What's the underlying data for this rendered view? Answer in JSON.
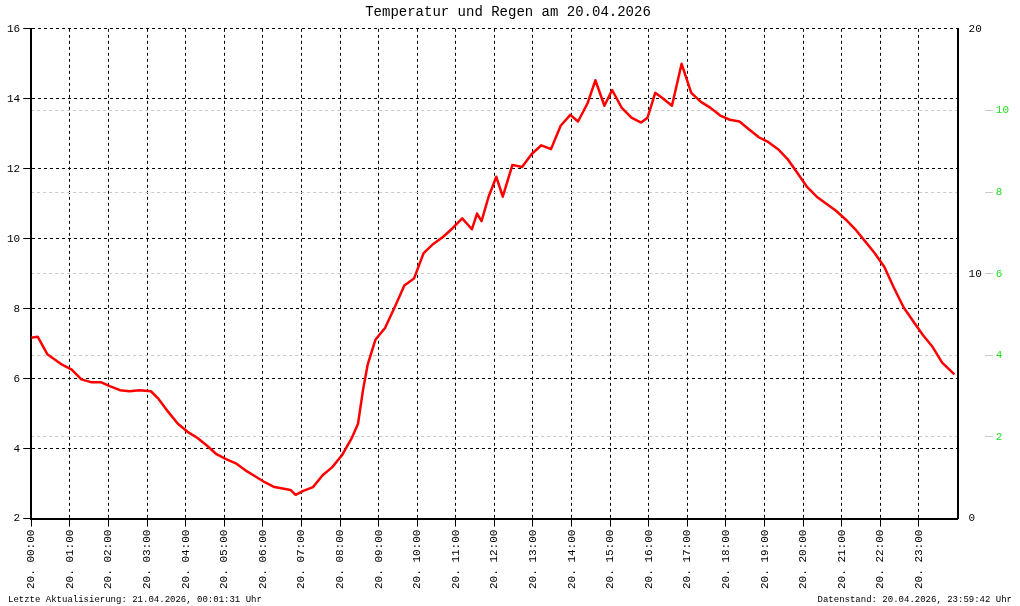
{
  "chart_data": {
    "type": "line",
    "title": "Temperatur und Regen am 20.04.2026",
    "x": [
      "2026-04-20T00:00",
      "2026-04-20T00:10",
      "2026-04-20T00:25",
      "2026-04-20T00:48",
      "2026-04-20T01:03",
      "2026-04-20T01:18",
      "2026-04-20T01:33",
      "2026-04-20T01:48",
      "2026-04-20T02:03",
      "2026-04-20T02:18",
      "2026-04-20T02:33",
      "2026-04-20T02:48",
      "2026-04-20T03:06",
      "2026-04-20T03:18",
      "2026-04-20T03:33",
      "2026-04-20T03:48",
      "2026-04-20T04:03",
      "2026-04-20T04:18",
      "2026-04-20T04:33",
      "2026-04-20T04:48",
      "2026-04-20T05:03",
      "2026-04-20T05:18",
      "2026-04-20T05:33",
      "2026-04-20T05:48",
      "2026-04-20T06:03",
      "2026-04-20T06:18",
      "2026-04-20T06:33",
      "2026-04-20T06:43",
      "2026-04-20T06:51",
      "2026-04-20T07:03",
      "2026-04-20T07:18",
      "2026-04-20T07:33",
      "2026-04-20T07:48",
      "2026-04-20T08:03",
      "2026-04-20T08:18",
      "2026-04-20T08:28",
      "2026-04-20T08:36",
      "2026-04-20T08:43",
      "2026-04-20T08:55",
      "2026-04-20T09:10",
      "2026-04-20T09:25",
      "2026-04-20T09:40",
      "2026-04-20T09:55",
      "2026-04-20T10:10",
      "2026-04-20T10:25",
      "2026-04-20T10:40",
      "2026-04-20T10:55",
      "2026-04-20T11:10",
      "2026-04-20T11:25",
      "2026-04-20T11:33",
      "2026-04-20T11:40",
      "2026-04-20T11:51",
      "2026-04-20T12:03",
      "2026-04-20T12:13",
      "2026-04-20T12:28",
      "2026-04-20T12:43",
      "2026-04-20T12:58",
      "2026-04-20T13:13",
      "2026-04-20T13:28",
      "2026-04-20T13:43",
      "2026-04-20T13:58",
      "2026-04-20T14:10",
      "2026-04-20T14:25",
      "2026-04-20T14:37",
      "2026-04-20T14:51",
      "2026-04-20T15:03",
      "2026-04-20T15:18",
      "2026-04-20T15:33",
      "2026-04-20T15:48",
      "2026-04-20T15:58",
      "2026-04-20T16:10",
      "2026-04-20T16:21",
      "2026-04-20T16:36",
      "2026-04-20T16:51",
      "2026-04-20T17:06",
      "2026-04-20T17:21",
      "2026-04-20T17:36",
      "2026-04-20T17:51",
      "2026-04-20T18:06",
      "2026-04-20T18:21",
      "2026-04-20T18:36",
      "2026-04-20T18:51",
      "2026-04-20T19:06",
      "2026-04-20T19:21",
      "2026-04-20T19:36",
      "2026-04-20T19:51",
      "2026-04-20T20:06",
      "2026-04-20T20:21",
      "2026-04-20T20:36",
      "2026-04-20T20:51",
      "2026-04-20T21:06",
      "2026-04-20T21:21",
      "2026-04-20T21:36",
      "2026-04-20T21:51",
      "2026-04-20T22:06",
      "2026-04-20T22:21",
      "2026-04-20T22:36",
      "2026-04-20T22:51",
      "2026-04-20T23:06",
      "2026-04-20T23:21",
      "2026-04-20T23:36",
      "2026-04-20T23:55"
    ],
    "series": [
      {
        "color": "#ff0000",
        "values": [
          7.17,
          7.2,
          6.7,
          6.4,
          6.26,
          5.98,
          5.9,
          5.9,
          5.78,
          5.67,
          5.64,
          5.67,
          5.64,
          5.42,
          5.05,
          4.71,
          4.48,
          4.31,
          4.09,
          3.84,
          3.7,
          3.58,
          3.38,
          3.21,
          3.04,
          2.9,
          2.85,
          2.82,
          2.68,
          2.79,
          2.9,
          3.24,
          3.47,
          3.81,
          4.29,
          4.71,
          5.7,
          6.4,
          7.11,
          7.45,
          8.04,
          8.66,
          8.86,
          9.59,
          9.85,
          10.05,
          10.3,
          10.58,
          10.27,
          10.72,
          10.5,
          11.2,
          11.77,
          11.2,
          12.11,
          12.05,
          12.42,
          12.67,
          12.56,
          13.23,
          13.54,
          13.35,
          13.88,
          14.53,
          13.8,
          14.25,
          13.74,
          13.46,
          13.32,
          13.46,
          14.17,
          14.02,
          13.8,
          15.0,
          14.17,
          13.91,
          13.74,
          13.52,
          13.4,
          13.35,
          13.12,
          12.9,
          12.76,
          12.56,
          12.27,
          11.88,
          11.48,
          11.2,
          11.0,
          10.8,
          10.55,
          10.27,
          9.93,
          9.59,
          9.2,
          8.6,
          8.04,
          7.64,
          7.25,
          6.91,
          6.46,
          6.12
        ]
      }
    ],
    "xlim": [
      "2026-04-20T00:00",
      "2026-04-21T00:00"
    ],
    "xticks": [
      {
        "value": "2026-04-20T00:00",
        "label": "20. 00:00"
      },
      {
        "value": "2026-04-20T01:00",
        "label": "20. 01:00"
      },
      {
        "value": "2026-04-20T02:00",
        "label": "20. 02:00"
      },
      {
        "value": "2026-04-20T03:00",
        "label": "20. 03:00"
      },
      {
        "value": "2026-04-20T04:00",
        "label": "20. 04:00"
      },
      {
        "value": "2026-04-20T05:00",
        "label": "20. 05:00"
      },
      {
        "value": "2026-04-20T06:00",
        "label": "20. 06:00"
      },
      {
        "value": "2026-04-20T07:00",
        "label": "20. 07:00"
      },
      {
        "value": "2026-04-20T08:00",
        "label": "20. 08:00"
      },
      {
        "value": "2026-04-20T09:00",
        "label": "20. 09:00"
      },
      {
        "value": "2026-04-20T10:00",
        "label": "20. 10:00"
      },
      {
        "value": "2026-04-20T11:00",
        "label": "20. 11:00"
      },
      {
        "value": "2026-04-20T12:00",
        "label": "20. 12:00"
      },
      {
        "value": "2026-04-20T13:00",
        "label": "20. 13:00"
      },
      {
        "value": "2026-04-20T14:00",
        "label": "20. 14:00"
      },
      {
        "value": "2026-04-20T15:00",
        "label": "20. 15:00"
      },
      {
        "value": "2026-04-20T16:00",
        "label": "20. 16:00"
      },
      {
        "value": "2026-04-20T17:00",
        "label": "20. 17:00"
      },
      {
        "value": "2026-04-20T18:00",
        "label": "20. 18:00"
      },
      {
        "value": "2026-04-20T19:00",
        "label": "20. 19:00"
      },
      {
        "value": "2026-04-20T20:00",
        "label": "20. 20:00"
      },
      {
        "value": "2026-04-20T21:00",
        "label": "20. 21:00"
      },
      {
        "value": "2026-04-20T22:00",
        "label": "20. 22:00"
      },
      {
        "value": "2026-04-20T23:00",
        "label": "20. 23:00"
      }
    ],
    "ylim": [
      2,
      16
    ],
    "yticks": [
      2,
      4,
      6,
      8,
      10,
      12,
      14,
      16
    ],
    "y2lim": [
      0,
      20
    ],
    "y2ticks": [
      0,
      10,
      20
    ],
    "y3lim": [
      0,
      12
    ],
    "y3ticks": [
      2,
      4,
      6,
      8,
      10
    ],
    "grid": true,
    "legend": false,
    "marker": "none",
    "line_style": "solid",
    "annotations": [
      "Letzte Aktualisierung: 21.04.2026, 00:01:31 Uhr",
      "Datenstand: 20.04.2026, 23:59:42 Uhr"
    ]
  }
}
